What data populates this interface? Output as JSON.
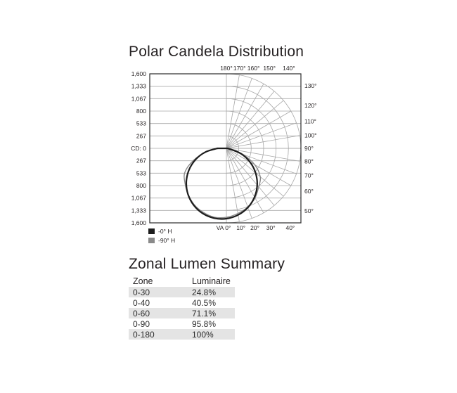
{
  "chart_data": {
    "type": "polar",
    "title": "Polar Candela Distribution",
    "units": "candela",
    "max_cd": 1600,
    "radial_ticks_cd": [
      267,
      533,
      800,
      1067,
      1333,
      1600
    ],
    "left_axis_labels": [
      "1,600",
      "1,333",
      "1,067",
      "800",
      "533",
      "267",
      "CD: 0",
      "267",
      "533",
      "800",
      "1,067",
      "1,333",
      "1,600"
    ],
    "angle_labels": {
      "top": [
        {
          "va": 180,
          "label": "180°"
        },
        {
          "va": 170,
          "label": "170°"
        },
        {
          "va": 160,
          "label": "160°"
        },
        {
          "va": 150,
          "label": "150°"
        },
        {
          "va": 140,
          "label": "140°"
        }
      ],
      "right": [
        {
          "va": 130,
          "label": "130°"
        },
        {
          "va": 120,
          "label": "120°"
        },
        {
          "va": 110,
          "label": "110°"
        },
        {
          "va": 100,
          "label": "100°"
        },
        {
          "va": 90,
          "label": "90°"
        },
        {
          "va": 80,
          "label": "80°"
        },
        {
          "va": 70,
          "label": "70°"
        },
        {
          "va": 60,
          "label": "60°"
        },
        {
          "va": 50,
          "label": "50°"
        }
      ],
      "bottom": [
        {
          "va": 0,
          "label": "VA 0°"
        },
        {
          "va": 10,
          "label": "10°"
        },
        {
          "va": 20,
          "label": "20°"
        },
        {
          "va": 30,
          "label": "30°"
        },
        {
          "va": 40,
          "label": "40°"
        }
      ]
    },
    "ray_step_deg": 10,
    "grid_on": true,
    "grid_color": "#a8a8a8",
    "border_color": "#2b2b2b",
    "series": [
      {
        "name": "-0° H",
        "color": "#1d1d1d",
        "stroke_width": 2.2,
        "angles_va": [
          -90,
          -80,
          -70,
          -60,
          -50,
          -40,
          -30,
          -20,
          -10,
          0,
          10,
          20,
          30,
          40,
          50,
          60,
          70,
          80,
          90
        ],
        "candela": [
          199,
          458,
          703,
          927,
          1123,
          1284,
          1407,
          1487,
          1522,
          1510,
          1452,
          1351,
          1208,
          1029,
          818,
          583,
          329,
          66,
          0
        ]
      },
      {
        "name": "-90° H",
        "color": "#8a8a8a",
        "stroke_width": 1.4,
        "angles_va": [
          -90,
          -80,
          -70,
          -60,
          -50,
          -40,
          -30,
          -20,
          -10,
          0,
          10,
          20,
          30,
          40,
          50,
          60,
          70,
          80,
          90
        ],
        "candela": [
          150,
          430,
          750,
          1030,
          1160,
          1280,
          1390,
          1460,
          1500,
          1480,
          1420,
          1340,
          1230,
          1080,
          950,
          700,
          380,
          100,
          0
        ]
      }
    ]
  },
  "legend": {
    "items": [
      {
        "label": "-0° H",
        "swatch": "#1d1d1d"
      },
      {
        "label": "-90° H",
        "swatch": "#8a8a8a"
      }
    ]
  },
  "zonal": {
    "heading": "Zonal Lumen Summary",
    "columns": [
      "Zone",
      "Luminaire"
    ],
    "rows": [
      {
        "zone": "0-30",
        "luminaire": "24.8%"
      },
      {
        "zone": "0-40",
        "luminaire": "40.5%"
      },
      {
        "zone": "0-60",
        "luminaire": "71.1%"
      },
      {
        "zone": "0-90",
        "luminaire": "95.8%"
      },
      {
        "zone": "0-180",
        "luminaire": "100%"
      }
    ]
  }
}
